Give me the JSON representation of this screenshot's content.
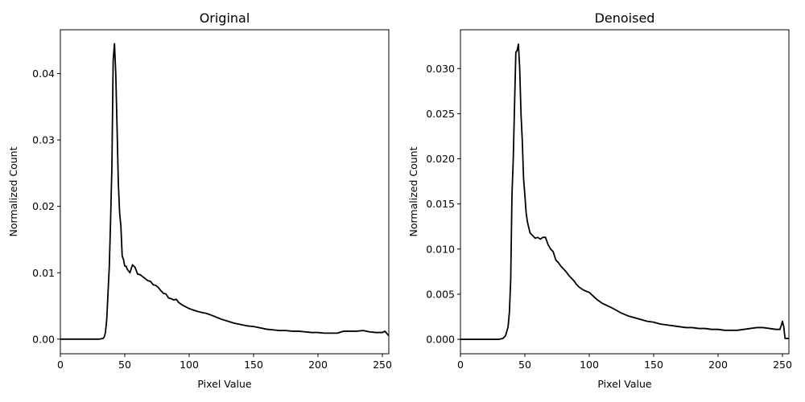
{
  "chart_data": [
    {
      "type": "line",
      "title": "Original",
      "xlabel": "Pixel Value",
      "ylabel": "Normalized Count",
      "xlim": [
        0,
        255
      ],
      "ylim": [
        -0.0022,
        0.0466
      ],
      "xticks": [
        0,
        50,
        100,
        150,
        200,
        250
      ],
      "yticks": [
        0.0,
        0.01,
        0.02,
        0.03,
        0.04
      ],
      "ytick_labels": [
        "0.00",
        "0.01",
        "0.02",
        "0.03",
        "0.04"
      ],
      "grid": false,
      "color": "#000000",
      "series": [
        {
          "x": [
            0,
            30,
            33,
            34,
            35,
            36,
            37,
            38,
            39,
            40,
            41,
            42,
            43,
            44,
            45,
            46,
            47,
            48,
            49,
            50,
            51,
            52,
            54,
            56,
            57,
            58,
            60,
            62,
            64,
            66,
            68,
            70,
            72,
            74,
            76,
            78,
            80,
            82,
            84,
            86,
            88,
            90,
            92,
            95,
            98,
            100,
            103,
            106,
            110,
            113,
            116,
            120,
            125,
            130,
            135,
            140,
            145,
            150,
            155,
            160,
            165,
            170,
            175,
            180,
            185,
            190,
            195,
            200,
            205,
            210,
            215,
            220,
            225,
            230,
            235,
            240,
            245,
            250,
            252,
            255
          ],
          "y": [
            0,
            0,
            0.0001,
            0.0003,
            0.001,
            0.003,
            0.007,
            0.011,
            0.018,
            0.026,
            0.042,
            0.0445,
            0.04,
            0.032,
            0.0235,
            0.019,
            0.017,
            0.0125,
            0.012,
            0.011,
            0.011,
            0.0105,
            0.01,
            0.0112,
            0.011,
            0.0108,
            0.0098,
            0.0097,
            0.0094,
            0.0091,
            0.0088,
            0.0087,
            0.0082,
            0.0081,
            0.0078,
            0.0073,
            0.0069,
            0.0068,
            0.0062,
            0.0061,
            0.0059,
            0.006,
            0.0055,
            0.0051,
            0.0048,
            0.0046,
            0.0044,
            0.0042,
            0.004,
            0.0039,
            0.0037,
            0.0034,
            0.003,
            0.0027,
            0.0024,
            0.0022,
            0.002,
            0.0019,
            0.0017,
            0.0015,
            0.0014,
            0.0013,
            0.0013,
            0.0012,
            0.0012,
            0.0011,
            0.001,
            0.001,
            0.0009,
            0.0009,
            0.0009,
            0.0012,
            0.0012,
            0.0012,
            0.0013,
            0.0011,
            0.001,
            0.001,
            0.0012,
            0.0005
          ]
        }
      ]
    },
    {
      "type": "line",
      "title": "Denoised",
      "xlabel": "Pixel Value",
      "ylabel": "Normalized Count",
      "xlim": [
        0,
        255
      ],
      "ylim": [
        -0.0016,
        0.0343
      ],
      "xticks": [
        0,
        50,
        100,
        150,
        200,
        250
      ],
      "yticks": [
        0.0,
        0.005,
        0.01,
        0.015,
        0.02,
        0.025,
        0.03
      ],
      "ytick_labels": [
        "0.000",
        "0.005",
        "0.010",
        "0.015",
        "0.020",
        "0.025",
        "0.030"
      ],
      "grid": false,
      "color": "#000000",
      "series": [
        {
          "x": [
            0,
            30,
            33,
            35,
            37,
            38,
            39,
            40,
            41,
            42,
            43,
            44,
            45,
            46,
            47,
            48,
            49,
            50,
            51,
            52,
            54,
            56,
            58,
            60,
            62,
            64,
            66,
            68,
            70,
            72,
            74,
            76,
            78,
            80,
            82,
            84,
            86,
            88,
            90,
            92,
            95,
            98,
            100,
            103,
            106,
            110,
            113,
            116,
            120,
            125,
            130,
            135,
            140,
            145,
            150,
            155,
            160,
            165,
            170,
            175,
            180,
            185,
            190,
            195,
            200,
            205,
            210,
            215,
            220,
            225,
            230,
            235,
            240,
            245,
            248,
            249,
            250,
            251,
            252,
            255
          ],
          "y": [
            0,
            0,
            0.0001,
            0.0004,
            0.0014,
            0.003,
            0.0065,
            0.016,
            0.02,
            0.026,
            0.0318,
            0.032,
            0.0327,
            0.03,
            0.025,
            0.022,
            0.0178,
            0.016,
            0.014,
            0.013,
            0.0118,
            0.0115,
            0.0112,
            0.0113,
            0.0111,
            0.0113,
            0.0113,
            0.0105,
            0.01,
            0.0097,
            0.0088,
            0.0085,
            0.0081,
            0.0078,
            0.0075,
            0.0071,
            0.0068,
            0.0065,
            0.0061,
            0.0058,
            0.0055,
            0.0053,
            0.0052,
            0.0048,
            0.0044,
            0.004,
            0.0038,
            0.0036,
            0.0033,
            0.0029,
            0.0026,
            0.0024,
            0.0022,
            0.002,
            0.0019,
            0.0017,
            0.0016,
            0.0015,
            0.0014,
            0.0013,
            0.0013,
            0.0012,
            0.0012,
            0.0011,
            0.0011,
            0.001,
            0.001,
            0.001,
            0.0011,
            0.0012,
            0.0013,
            0.0013,
            0.0012,
            0.0011,
            0.0011,
            0.0015,
            0.002,
            0.0014,
            0.0001,
            0.0001
          ]
        }
      ]
    }
  ]
}
